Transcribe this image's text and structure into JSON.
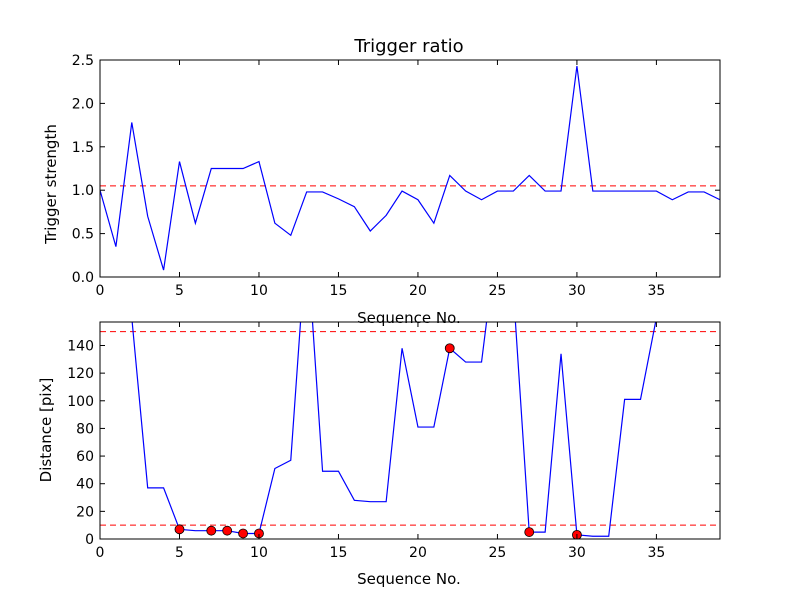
{
  "chart_data": [
    {
      "type": "line",
      "title": "Trigger ratio",
      "xlabel": "Sequence No.",
      "ylabel": "Trigger strength",
      "xlim": [
        0,
        39
      ],
      "ylim": [
        0,
        2.5
      ],
      "xticks": [
        0,
        5,
        10,
        15,
        20,
        25,
        30,
        35
      ],
      "xtick_labels": [
        "0",
        "5",
        "10",
        "15",
        "20",
        "25",
        "30",
        "35"
      ],
      "yticks": [
        0,
        0.5,
        1.0,
        1.5,
        2.0,
        2.5
      ],
      "ytick_labels": [
        "0.0",
        "0.5",
        "1.0",
        "1.5",
        "2.0",
        "2.5"
      ],
      "series": [
        {
          "color": "#0000ff",
          "style": "line",
          "x": [
            0,
            1,
            2,
            3,
            4,
            5,
            6,
            7,
            8,
            9,
            10,
            11,
            12,
            13,
            14,
            15,
            16,
            17,
            18,
            19,
            20,
            21,
            22,
            23,
            24,
            25,
            26,
            27,
            28,
            29,
            30,
            31,
            32,
            33,
            34,
            35,
            36,
            37,
            38,
            39
          ],
          "values": [
            1.0,
            0.35,
            1.78,
            0.7,
            0.08,
            1.33,
            0.62,
            1.25,
            1.25,
            1.25,
            1.33,
            0.62,
            0.48,
            0.98,
            0.98,
            0.9,
            0.81,
            0.53,
            0.71,
            0.99,
            0.89,
            0.62,
            1.17,
            0.99,
            0.89,
            0.99,
            0.99,
            1.17,
            0.99,
            0.99,
            2.43,
            0.99,
            0.99,
            0.99,
            0.99,
            0.99,
            0.89,
            0.98,
            0.98,
            0.89
          ]
        }
      ],
      "reference_lines": [
        {
          "y": 1.05,
          "color": "#ff0000",
          "style": "dashed"
        }
      ],
      "grid": false
    },
    {
      "type": "line",
      "title": "",
      "xlabel": "Sequence No.",
      "ylabel": "Distance [pix]",
      "xlim": [
        0,
        39
      ],
      "ylim": [
        0,
        157
      ],
      "xticks": [
        0,
        5,
        10,
        15,
        20,
        25,
        30,
        35
      ],
      "xtick_labels": [
        "0",
        "5",
        "10",
        "15",
        "20",
        "25",
        "30",
        "35"
      ],
      "yticks": [
        0,
        20,
        40,
        60,
        80,
        100,
        120,
        140
      ],
      "ytick_labels": [
        "0",
        "20",
        "40",
        "60",
        "80",
        "100",
        "120",
        "140"
      ],
      "series": [
        {
          "color": "#0000ff",
          "style": "line",
          "x": [
            2,
            3,
            4,
            5,
            6,
            7,
            8,
            9,
            10,
            11,
            12,
            13,
            14,
            15,
            16,
            17,
            18,
            19,
            20,
            21,
            22,
            23,
            24,
            25,
            26,
            27,
            28,
            29,
            30,
            31,
            32,
            33,
            34,
            35
          ],
          "values": [
            160,
            37,
            37,
            7,
            6,
            6,
            6,
            4,
            4,
            51,
            57,
            220,
            49,
            49,
            28,
            27,
            27,
            138,
            81,
            81,
            138,
            128,
            128,
            220,
            180,
            5,
            5,
            134,
            3,
            2,
            2,
            101,
            101,
            160
          ]
        },
        {
          "color": "#ff0000",
          "style": "markers",
          "x": [
            5,
            7,
            8,
            9,
            10,
            22,
            27,
            30
          ],
          "values": [
            7,
            6,
            6,
            4,
            4,
            138,
            5,
            3
          ]
        }
      ],
      "reference_lines": [
        {
          "y": 150,
          "color": "#ff0000",
          "style": "dashed"
        },
        {
          "y": 10,
          "color": "#ff0000",
          "style": "dashed"
        }
      ],
      "grid": false
    }
  ]
}
